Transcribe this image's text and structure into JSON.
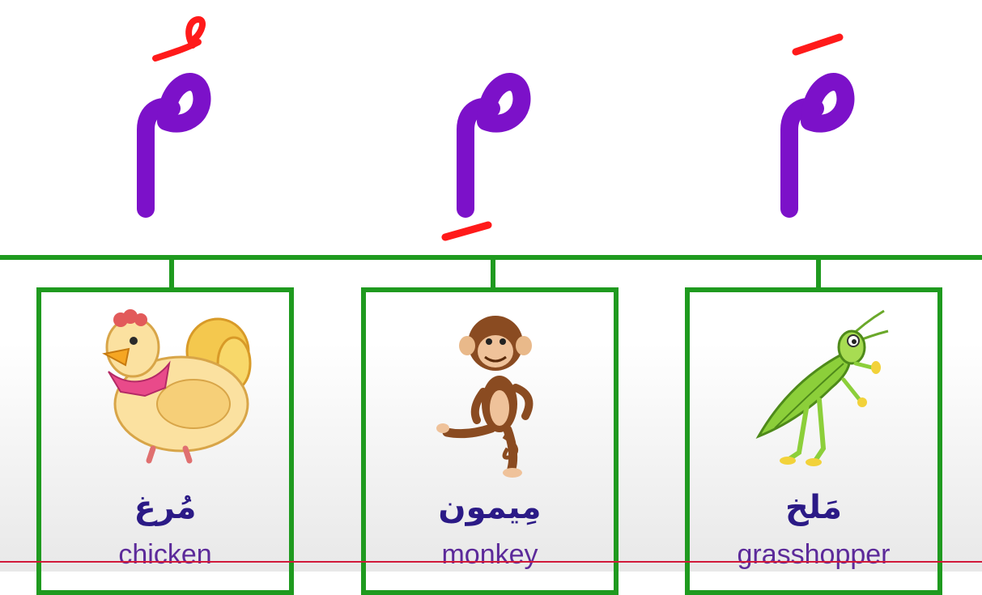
{
  "colors": {
    "letter": "#7c11c9",
    "harakat": "#ff1a1a",
    "tree": "#1f9a1f",
    "arabic_word": "#2b1a86",
    "english_word": "#5c2a9a",
    "baseline": "#d11a3a"
  },
  "letters": [
    {
      "harakah": "damma",
      "glyph": "مُ"
    },
    {
      "harakah": "kasra",
      "glyph": "مِ"
    },
    {
      "harakah": "fatha",
      "glyph": "مَ"
    }
  ],
  "cards": [
    {
      "arabic": "مُرغ",
      "english": "chicken",
      "icon": "chicken-icon"
    },
    {
      "arabic": "مِیمون",
      "english": "monkey",
      "icon": "monkey-icon"
    },
    {
      "arabic": "مَلخ",
      "english": "grasshopper",
      "icon": "grasshopper-icon"
    }
  ]
}
